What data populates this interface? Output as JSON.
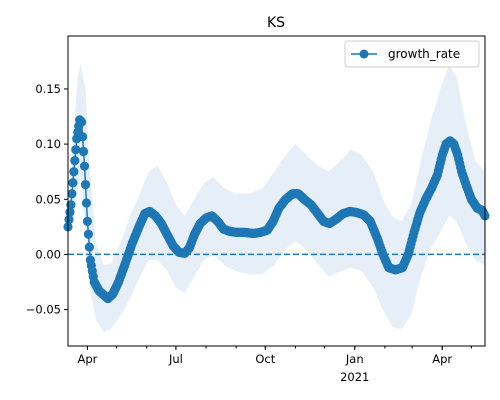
{
  "chart_data": {
    "type": "line",
    "title": "KS",
    "xlabel": "",
    "ylabel": "",
    "x_range": [
      "2020-03-12",
      "2021-05-15"
    ],
    "ylim": [
      -0.083,
      0.198
    ],
    "y_ticks": [
      -0.05,
      0.0,
      0.05,
      0.1,
      0.15
    ],
    "y_tick_labels": [
      "−0.05",
      "0.00",
      "0.05",
      "0.10",
      "0.15"
    ],
    "x_ticks": [
      {
        "date": "2020-04-01",
        "label": "Apr"
      },
      {
        "date": "2020-07-01",
        "label": "Jul"
      },
      {
        "date": "2020-10-01",
        "label": "Oct"
      },
      {
        "date": "2021-01-01",
        "label": "Jan",
        "sublabel": "2021"
      },
      {
        "date": "2021-04-01",
        "label": "Apr"
      }
    ],
    "grid": false,
    "legend": {
      "position": "top-right",
      "entries": [
        "growth_rate"
      ]
    },
    "reference_line": {
      "y": 0,
      "style": "dashed"
    },
    "colors": {
      "line": "#1f77b4",
      "band": "#dce8f5"
    },
    "series": [
      {
        "name": "growth_rate",
        "points": [
          [
            "2020-03-12",
            0.025
          ],
          [
            "2020-03-15",
            0.045
          ],
          [
            "2020-03-18",
            0.075
          ],
          [
            "2020-03-21",
            0.105
          ],
          [
            "2020-03-24",
            0.122
          ],
          [
            "2020-03-26",
            0.12
          ],
          [
            "2020-03-29",
            0.08
          ],
          [
            "2020-04-01",
            0.03
          ],
          [
            "2020-04-04",
            -0.005
          ],
          [
            "2020-04-08",
            -0.025
          ],
          [
            "2020-04-13",
            -0.033
          ],
          [
            "2020-04-18",
            -0.037
          ],
          [
            "2020-04-22",
            -0.04
          ],
          [
            "2020-04-27",
            -0.036
          ],
          [
            "2020-05-03",
            -0.025
          ],
          [
            "2020-05-10",
            -0.008
          ],
          [
            "2020-05-17",
            0.01
          ],
          [
            "2020-05-24",
            0.025
          ],
          [
            "2020-05-30",
            0.037
          ],
          [
            "2020-06-04",
            0.039
          ],
          [
            "2020-06-10",
            0.035
          ],
          [
            "2020-06-16",
            0.028
          ],
          [
            "2020-06-22",
            0.018
          ],
          [
            "2020-06-28",
            0.008
          ],
          [
            "2020-07-04",
            0.002
          ],
          [
            "2020-07-10",
            0.001
          ],
          [
            "2020-07-15",
            0.006
          ],
          [
            "2020-07-20",
            0.018
          ],
          [
            "2020-07-26",
            0.028
          ],
          [
            "2020-08-01",
            0.033
          ],
          [
            "2020-08-07",
            0.035
          ],
          [
            "2020-08-13",
            0.03
          ],
          [
            "2020-08-19",
            0.023
          ],
          [
            "2020-08-25",
            0.021
          ],
          [
            "2020-09-01",
            0.02
          ],
          [
            "2020-09-10",
            0.02
          ],
          [
            "2020-09-19",
            0.019
          ],
          [
            "2020-09-26",
            0.02
          ],
          [
            "2020-10-03",
            0.022
          ],
          [
            "2020-10-09",
            0.03
          ],
          [
            "2020-10-15",
            0.042
          ],
          [
            "2020-10-22",
            0.05
          ],
          [
            "2020-10-29",
            0.055
          ],
          [
            "2020-11-04",
            0.055
          ],
          [
            "2020-11-10",
            0.05
          ],
          [
            "2020-11-17",
            0.045
          ],
          [
            "2020-11-24",
            0.037
          ],
          [
            "2020-11-30",
            0.03
          ],
          [
            "2020-12-06",
            0.028
          ],
          [
            "2020-12-13",
            0.032
          ],
          [
            "2020-12-20",
            0.037
          ],
          [
            "2020-12-27",
            0.039
          ],
          [
            "2021-01-03",
            0.038
          ],
          [
            "2021-01-10",
            0.036
          ],
          [
            "2021-01-17",
            0.03
          ],
          [
            "2021-01-24",
            0.015
          ],
          [
            "2021-01-30",
            0.0
          ],
          [
            "2021-02-05",
            -0.012
          ],
          [
            "2021-02-12",
            -0.014
          ],
          [
            "2021-02-19",
            -0.012
          ],
          [
            "2021-02-25",
            0.0
          ],
          [
            "2021-03-03",
            0.02
          ],
          [
            "2021-03-09",
            0.038
          ],
          [
            "2021-03-15",
            0.05
          ],
          [
            "2021-03-21",
            0.06
          ],
          [
            "2021-03-27",
            0.072
          ],
          [
            "2021-04-01",
            0.09
          ],
          [
            "2021-04-05",
            0.1
          ],
          [
            "2021-04-09",
            0.103
          ],
          [
            "2021-04-13",
            0.1
          ],
          [
            "2021-04-17",
            0.09
          ],
          [
            "2021-04-21",
            0.075
          ],
          [
            "2021-04-26",
            0.062
          ],
          [
            "2021-05-01",
            0.05
          ],
          [
            "2021-05-07",
            0.042
          ],
          [
            "2021-05-12",
            0.04
          ],
          [
            "2021-05-15",
            0.035
          ]
        ],
        "band_upper": [
          [
            "2020-03-12",
            0.03
          ],
          [
            "2020-03-17",
            0.1
          ],
          [
            "2020-03-22",
            0.16
          ],
          [
            "2020-03-25",
            0.173
          ],
          [
            "2020-03-30",
            0.15
          ],
          [
            "2020-04-04",
            0.07
          ],
          [
            "2020-04-10",
            0.01
          ],
          [
            "2020-04-18",
            -0.01
          ],
          [
            "2020-04-25",
            -0.008
          ],
          [
            "2020-05-05",
            0.01
          ],
          [
            "2020-05-15",
            0.035
          ],
          [
            "2020-05-25",
            0.055
          ],
          [
            "2020-06-03",
            0.075
          ],
          [
            "2020-06-12",
            0.08
          ],
          [
            "2020-06-22",
            0.065
          ],
          [
            "2020-07-01",
            0.045
          ],
          [
            "2020-07-10",
            0.035
          ],
          [
            "2020-07-20",
            0.05
          ],
          [
            "2020-07-30",
            0.065
          ],
          [
            "2020-08-08",
            0.07
          ],
          [
            "2020-08-20",
            0.06
          ],
          [
            "2020-09-01",
            0.055
          ],
          [
            "2020-09-15",
            0.055
          ],
          [
            "2020-09-28",
            0.06
          ],
          [
            "2020-10-10",
            0.075
          ],
          [
            "2020-10-22",
            0.09
          ],
          [
            "2020-11-01",
            0.1
          ],
          [
            "2020-11-12",
            0.09
          ],
          [
            "2020-11-25",
            0.08
          ],
          [
            "2020-12-05",
            0.075
          ],
          [
            "2020-12-18",
            0.085
          ],
          [
            "2020-12-28",
            0.095
          ],
          [
            "2021-01-08",
            0.09
          ],
          [
            "2021-01-20",
            0.075
          ],
          [
            "2021-01-30",
            0.05
          ],
          [
            "2021-02-08",
            0.035
          ],
          [
            "2021-02-18",
            0.03
          ],
          [
            "2021-02-28",
            0.045
          ],
          [
            "2021-03-10",
            0.085
          ],
          [
            "2021-03-20",
            0.12
          ],
          [
            "2021-03-30",
            0.15
          ],
          [
            "2021-04-08",
            0.172
          ],
          [
            "2021-04-16",
            0.16
          ],
          [
            "2021-04-25",
            0.12
          ],
          [
            "2021-05-05",
            0.085
          ],
          [
            "2021-05-15",
            0.075
          ]
        ],
        "band_lower": [
          [
            "2020-03-12",
            0.02
          ],
          [
            "2020-03-17",
            0.03
          ],
          [
            "2020-03-22",
            0.06
          ],
          [
            "2020-03-25",
            0.07
          ],
          [
            "2020-03-30",
            0.02
          ],
          [
            "2020-04-04",
            -0.035
          ],
          [
            "2020-04-10",
            -0.06
          ],
          [
            "2020-04-18",
            -0.07
          ],
          [
            "2020-04-25",
            -0.068
          ],
          [
            "2020-05-05",
            -0.055
          ],
          [
            "2020-05-15",
            -0.04
          ],
          [
            "2020-05-25",
            -0.02
          ],
          [
            "2020-06-03",
            -0.005
          ],
          [
            "2020-06-12",
            -0.005
          ],
          [
            "2020-06-22",
            -0.015
          ],
          [
            "2020-07-01",
            -0.03
          ],
          [
            "2020-07-10",
            -0.035
          ],
          [
            "2020-07-20",
            -0.02
          ],
          [
            "2020-07-30",
            -0.005
          ],
          [
            "2020-08-08",
            0.0
          ],
          [
            "2020-08-20",
            -0.01
          ],
          [
            "2020-09-01",
            -0.015
          ],
          [
            "2020-09-15",
            -0.018
          ],
          [
            "2020-09-28",
            -0.018
          ],
          [
            "2020-10-10",
            -0.01
          ],
          [
            "2020-10-22",
            0.005
          ],
          [
            "2020-11-01",
            0.012
          ],
          [
            "2020-11-12",
            0.005
          ],
          [
            "2020-11-25",
            -0.01
          ],
          [
            "2020-12-05",
            -0.02
          ],
          [
            "2020-12-18",
            -0.015
          ],
          [
            "2020-12-28",
            -0.012
          ],
          [
            "2021-01-08",
            -0.015
          ],
          [
            "2021-01-20",
            -0.03
          ],
          [
            "2021-01-30",
            -0.05
          ],
          [
            "2021-02-08",
            -0.065
          ],
          [
            "2021-02-18",
            -0.068
          ],
          [
            "2021-02-28",
            -0.055
          ],
          [
            "2021-03-10",
            -0.02
          ],
          [
            "2021-03-20",
            0.005
          ],
          [
            "2021-03-30",
            0.02
          ],
          [
            "2021-04-08",
            0.035
          ],
          [
            "2021-04-16",
            0.03
          ],
          [
            "2021-04-25",
            0.01
          ],
          [
            "2021-05-05",
            -0.005
          ],
          [
            "2021-05-15",
            -0.01
          ]
        ]
      }
    ]
  }
}
